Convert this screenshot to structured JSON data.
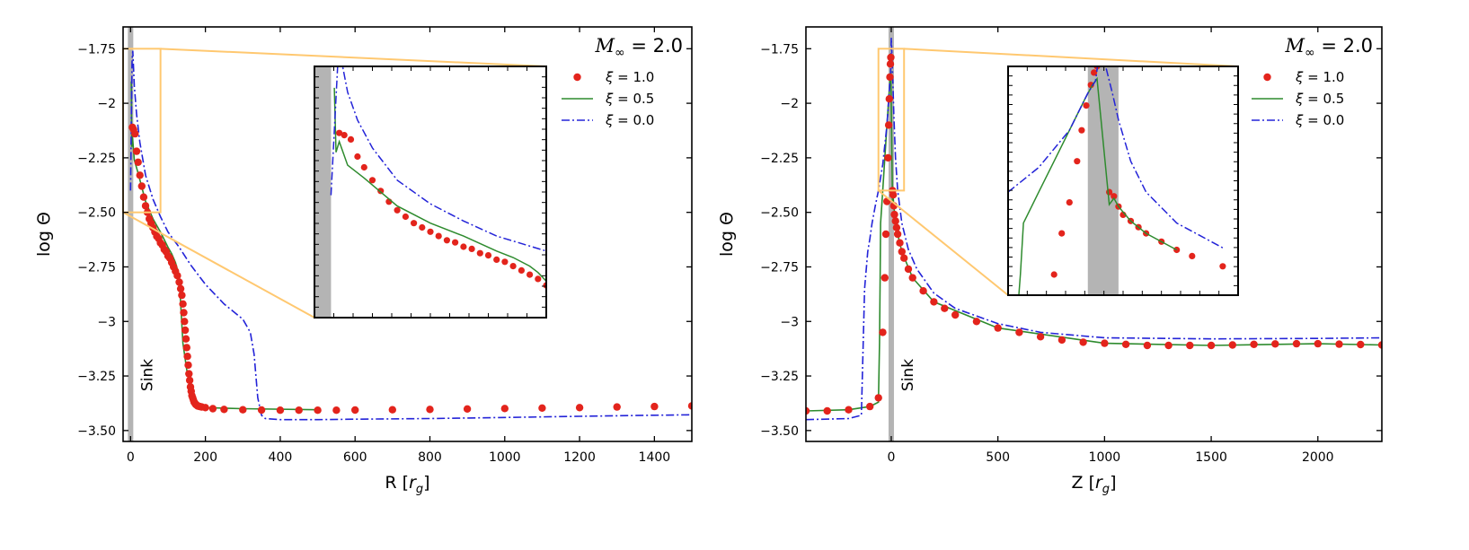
{
  "chart_data": [
    {
      "type": "line",
      "panel": "left",
      "xlabel": "R [r_g]",
      "ylabel": "log Θ",
      "xlim": [
        -20,
        1500
      ],
      "ylim": [
        -3.55,
        -1.65
      ],
      "xticks": [
        0,
        200,
        400,
        600,
        800,
        1000,
        1200,
        1400
      ],
      "yticks": [
        -1.75,
        -2.0,
        -2.25,
        -2.5,
        -2.75,
        -3.0,
        -3.25,
        -3.5
      ],
      "sink_label": "Sink",
      "sink_x": 0,
      "legend_title": "M∞ = 2.0",
      "legend_position": "top-right",
      "series": [
        {
          "name": "ξ = 1.0",
          "style": "dots",
          "color": "#e3241c",
          "x": [
            5,
            8,
            12,
            16,
            20,
            25,
            30,
            35,
            40,
            45,
            50,
            55,
            60,
            65,
            70,
            75,
            80,
            85,
            90,
            95,
            100,
            105,
            110,
            115,
            120,
            125,
            130,
            134,
            137,
            140,
            142,
            144,
            146,
            148,
            150,
            152,
            154,
            156,
            158,
            160,
            162,
            164,
            166,
            168,
            170,
            172,
            174,
            176,
            178,
            180,
            185,
            190,
            200,
            220,
            250,
            300,
            350,
            400,
            450,
            500,
            550,
            600,
            700,
            800,
            900,
            1000,
            1100,
            1200,
            1300,
            1400,
            1500
          ],
          "y": [
            -2.11,
            -2.12,
            -2.14,
            -2.22,
            -2.27,
            -2.33,
            -2.38,
            -2.43,
            -2.47,
            -2.5,
            -2.53,
            -2.55,
            -2.57,
            -2.59,
            -2.61,
            -2.62,
            -2.64,
            -2.65,
            -2.67,
            -2.68,
            -2.7,
            -2.71,
            -2.73,
            -2.75,
            -2.77,
            -2.79,
            -2.82,
            -2.85,
            -2.88,
            -2.92,
            -2.96,
            -3.0,
            -3.04,
            -3.08,
            -3.12,
            -3.16,
            -3.2,
            -3.24,
            -3.27,
            -3.3,
            -3.32,
            -3.34,
            -3.35,
            -3.36,
            -3.37,
            -3.375,
            -3.38,
            -3.383,
            -3.385,
            -3.388,
            -3.39,
            -3.392,
            -3.395,
            -3.4,
            -3.403,
            -3.405,
            -3.406,
            -3.407,
            -3.407,
            -3.407,
            -3.407,
            -3.406,
            -3.405,
            -3.403,
            -3.401,
            -3.399,
            -3.397,
            -3.395,
            -3.392,
            -3.39,
            -3.387
          ]
        },
        {
          "name": "ξ = 0.5",
          "style": "solid",
          "color": "#2e8b2e",
          "x": [
            2,
            3,
            5,
            10,
            20,
            40,
            60,
            80,
            100,
            110,
            120,
            125,
            130,
            135,
            140,
            150,
            160,
            170,
            175,
            180,
            190,
            200,
            300,
            500
          ],
          "y": [
            -1.9,
            -2.2,
            -2.15,
            -2.26,
            -2.32,
            -2.45,
            -2.53,
            -2.59,
            -2.66,
            -2.69,
            -2.73,
            -2.76,
            -2.8,
            -2.95,
            -3.1,
            -3.22,
            -3.3,
            -3.34,
            -3.37,
            -3.38,
            -3.39,
            -3.395,
            -3.4,
            -3.405
          ]
        },
        {
          "name": "ξ = 0.0",
          "style": "dashdot",
          "color": "#2323d8",
          "x": [
            0,
            4,
            6,
            10,
            16,
            25,
            40,
            60,
            80,
            100,
            130,
            160,
            200,
            250,
            300,
            320,
            330,
            340,
            350,
            360,
            400,
            500,
            600,
            800,
            1000,
            1200,
            1400,
            1500
          ],
          "y": [
            -2.4,
            -1.8,
            -1.76,
            -1.92,
            -2.05,
            -2.18,
            -2.33,
            -2.44,
            -2.52,
            -2.59,
            -2.66,
            -2.74,
            -2.83,
            -2.92,
            -2.99,
            -3.05,
            -3.15,
            -3.35,
            -3.43,
            -3.445,
            -3.45,
            -3.45,
            -3.448,
            -3.445,
            -3.44,
            -3.435,
            -3.43,
            -3.428
          ]
        }
      ]
    },
    {
      "type": "line",
      "panel": "right",
      "xlabel": "Z [r_g]",
      "ylabel": "log Θ",
      "xlim": [
        -400,
        2300
      ],
      "ylim": [
        -3.55,
        -1.65
      ],
      "xticks": [
        0,
        500,
        1000,
        1500,
        2000
      ],
      "yticks": [
        -1.75,
        -2.0,
        -2.25,
        -2.5,
        -2.75,
        -3.0,
        -3.25,
        -3.5
      ],
      "sink_label": "Sink",
      "sink_x": 0,
      "legend_title": "M∞ = 2.0",
      "legend_position": "top-right",
      "series": [
        {
          "name": "ξ = 1.0",
          "style": "dots",
          "color": "#e3241c",
          "x": [
            -400,
            -300,
            -200,
            -100,
            -60,
            -40,
            -30,
            -25,
            -20,
            -15,
            -12,
            -9,
            -6,
            -4,
            -2,
            6,
            9,
            12,
            15,
            20,
            25,
            30,
            40,
            50,
            60,
            80,
            100,
            150,
            200,
            250,
            300,
            400,
            500,
            600,
            700,
            800,
            900,
            1000,
            1100,
            1200,
            1300,
            1400,
            1500,
            1600,
            1700,
            1800,
            1900,
            2000,
            2100,
            2200,
            2300
          ],
          "y": [
            -3.41,
            -3.41,
            -3.405,
            -3.39,
            -3.35,
            -3.05,
            -2.8,
            -2.6,
            -2.45,
            -2.25,
            -2.1,
            -1.98,
            -1.88,
            -1.82,
            -1.79,
            -2.4,
            -2.42,
            -2.47,
            -2.51,
            -2.54,
            -2.57,
            -2.6,
            -2.64,
            -2.68,
            -2.71,
            -2.76,
            -2.8,
            -2.86,
            -2.91,
            -2.94,
            -2.97,
            -3.0,
            -3.03,
            -3.05,
            -3.07,
            -3.085,
            -3.095,
            -3.1,
            -3.105,
            -3.11,
            -3.11,
            -3.11,
            -3.11,
            -3.108,
            -3.105,
            -3.103,
            -3.102,
            -3.102,
            -3.104,
            -3.106,
            -3.108
          ]
        },
        {
          "name": "ξ = 0.5",
          "style": "solid",
          "color": "#2e8b2e",
          "x": [
            -400,
            -200,
            -100,
            -60,
            -55,
            -52,
            -50,
            -40,
            -30,
            -20,
            -10,
            -5,
            -2,
            6,
            9,
            12,
            20,
            30,
            50,
            100,
            200,
            500,
            1000,
            1500,
            2000,
            2300
          ],
          "y": [
            -3.41,
            -3.405,
            -3.39,
            -3.37,
            -3.1,
            -2.8,
            -2.55,
            -2.4,
            -2.25,
            -2.1,
            -1.95,
            -1.88,
            -1.85,
            -2.46,
            -2.43,
            -2.47,
            -2.54,
            -2.6,
            -2.68,
            -2.8,
            -2.91,
            -3.03,
            -3.1,
            -3.11,
            -3.102,
            -3.108
          ]
        },
        {
          "name": "ξ = 0.0",
          "style": "dashdot",
          "color": "#2323d8",
          "x": [
            -400,
            -200,
            -140,
            -125,
            -110,
            -100,
            -90,
            -75,
            -60,
            -40,
            -20,
            -8,
            -3,
            0,
            4,
            8,
            12,
            20,
            30,
            50,
            80,
            120,
            200,
            300,
            500,
            700,
            1000,
            1500,
            2000,
            2300
          ],
          "y": [
            -3.45,
            -3.445,
            -3.43,
            -2.85,
            -2.68,
            -2.62,
            -2.55,
            -2.47,
            -2.4,
            -2.28,
            -2.1,
            -1.92,
            -1.86,
            -1.7,
            -1.8,
            -1.92,
            -2.05,
            -2.25,
            -2.4,
            -2.55,
            -2.67,
            -2.76,
            -2.87,
            -2.94,
            -3.01,
            -3.05,
            -3.075,
            -3.08,
            -3.078,
            -3.075
          ]
        }
      ]
    }
  ]
}
